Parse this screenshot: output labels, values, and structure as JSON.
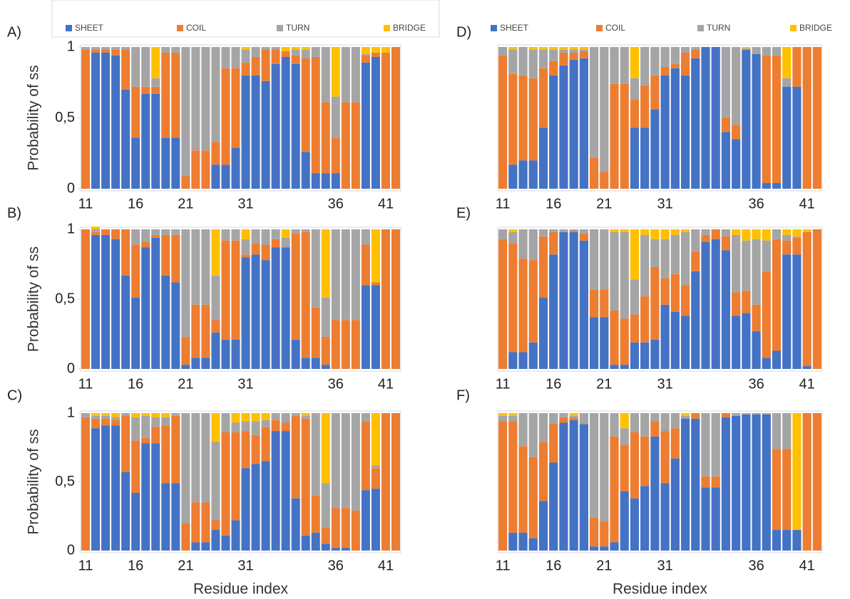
{
  "chart_data": [
    {
      "type": "bar",
      "stacked": true,
      "title": "A)",
      "ylabel": "Probability of ss",
      "categories": [
        "11",
        null,
        null,
        null,
        null,
        "16",
        null,
        null,
        null,
        null,
        "21",
        null,
        null,
        null,
        null,
        null,
        "31",
        null,
        null,
        null,
        null,
        null,
        null,
        null,
        null,
        "36",
        null,
        null,
        null,
        null,
        "41",
        null
      ],
      "ylim": [
        0,
        1
      ],
      "yticks": [
        0,
        {
          "value": 0.5,
          "label": "0,5"
        },
        1
      ],
      "series": [
        {
          "name": "SHEET",
          "color": "#4472c4",
          "values": [
            0,
            0.96,
            0.96,
            0.94,
            0.7,
            0.36,
            0.67,
            0.67,
            0.36,
            0.36,
            0,
            0,
            0,
            0.17,
            0.17,
            0.29,
            0.8,
            0.8,
            0.76,
            0.88,
            0.93,
            0.88,
            0.26,
            0.11,
            0.11,
            0.11,
            0,
            0,
            0.89,
            0.93,
            0,
            0
          ]
        },
        {
          "name": "COIL",
          "color": "#ed7d31",
          "values": [
            0.98,
            0.02,
            0.02,
            0.04,
            0.28,
            0.36,
            0.05,
            0.05,
            0.6,
            0.6,
            0.09,
            0.27,
            0.27,
            0.16,
            0.68,
            0.56,
            0.09,
            0.13,
            0.22,
            0.1,
            0.04,
            0.06,
            0.66,
            0.82,
            0.5,
            0.25,
            0.61,
            0.61,
            0.05,
            0.03,
            0.96,
            1
          ]
        },
        {
          "name": "TURN",
          "color": "#a5a5a5",
          "values": [
            0.02,
            0.02,
            0.02,
            0.02,
            0.02,
            0.28,
            0.28,
            0.06,
            0.04,
            0.04,
            0.91,
            0.73,
            0.73,
            0.67,
            0.15,
            0.15,
            0.09,
            0.07,
            0.02,
            0.02,
            0,
            0.04,
            0.06,
            0.07,
            0.39,
            0.29,
            0.39,
            0.39,
            0.01,
            0,
            0,
            0
          ]
        },
        {
          "name": "BRIDGE",
          "color": "#ffc000",
          "values": [
            0,
            0,
            0,
            0,
            0,
            0,
            0,
            0.22,
            0,
            0,
            0,
            0,
            0,
            0,
            0,
            0,
            0.02,
            0,
            0,
            0,
            0.03,
            0.02,
            0.02,
            0,
            0,
            0.35,
            0,
            0,
            0.05,
            0.04,
            0.04,
            0
          ]
        }
      ]
    },
    {
      "type": "bar",
      "stacked": true,
      "title": "B)",
      "ylabel": "Probability of ss",
      "categories": [
        "11",
        null,
        null,
        null,
        null,
        "16",
        null,
        null,
        null,
        null,
        "21",
        null,
        null,
        null,
        null,
        null,
        "31",
        null,
        null,
        null,
        null,
        null,
        null,
        null,
        null,
        "36",
        null,
        null,
        null,
        null,
        "41",
        null
      ],
      "ylim": [
        0,
        1
      ],
      "yticks": [
        0,
        {
          "value": 0.5,
          "label": "0,5"
        },
        1
      ],
      "series": [
        {
          "color": "#4472c4",
          "values": [
            0,
            0.96,
            0.96,
            0.93,
            0.67,
            0.51,
            0.87,
            0.94,
            0.67,
            0.62,
            0.03,
            0.08,
            0.08,
            0.26,
            0.21,
            0.21,
            0.8,
            0.82,
            0.78,
            0.87,
            0.87,
            0.21,
            0.08,
            0.08,
            0.03,
            0,
            0,
            0,
            0.6,
            0.6,
            0,
            0
          ]
        },
        {
          "color": "#ed7d31",
          "values": [
            1,
            0.02,
            0.04,
            0.07,
            0.33,
            0.38,
            0.04,
            0.02,
            0.29,
            0.34,
            0.2,
            0.38,
            0.38,
            0.09,
            0.71,
            0.71,
            0.02,
            0.08,
            0.11,
            0.06,
            0,
            0.76,
            0.9,
            0.36,
            0.2,
            0.35,
            0.35,
            0.35,
            0.29,
            0.02,
            1,
            1
          ]
        },
        {
          "color": "#a5a5a5",
          "values": [
            0,
            0.02,
            0,
            0,
            0,
            0.11,
            0.09,
            0.04,
            0.04,
            0.04,
            0.77,
            0.54,
            0.54,
            0.32,
            0.08,
            0.08,
            0.11,
            0.1,
            0.11,
            0.07,
            0.07,
            0.03,
            0.02,
            0.56,
            0.28,
            0.65,
            0.65,
            0.65,
            0.11,
            0,
            0,
            0
          ]
        },
        {
          "color": "#ffc000",
          "values": [
            0,
            0.02,
            0,
            0,
            0,
            0,
            0,
            0,
            0,
            0,
            0,
            0,
            0,
            0.33,
            0,
            0,
            0.07,
            0,
            0,
            0,
            0.06,
            0,
            0,
            0,
            0.49,
            0,
            0,
            0,
            0,
            0.38,
            0,
            0
          ]
        }
      ]
    },
    {
      "type": "bar",
      "stacked": true,
      "title": "C)",
      "ylabel": "Probability of ss",
      "xlabel": "Residue index",
      "categories": [
        "11",
        null,
        null,
        null,
        null,
        "16",
        null,
        null,
        null,
        null,
        "21",
        null,
        null,
        null,
        null,
        null,
        "31",
        null,
        null,
        null,
        null,
        null,
        null,
        null,
        null,
        "36",
        null,
        null,
        null,
        null,
        "41",
        null
      ],
      "ylim": [
        0,
        1
      ],
      "yticks": [
        0,
        {
          "value": 0.5,
          "label": "0,5"
        },
        1
      ],
      "series": [
        {
          "color": "#4472c4",
          "values": [
            0,
            0.89,
            0.91,
            0.91,
            0.57,
            0.42,
            0.78,
            0.78,
            0.49,
            0.49,
            0,
            0.06,
            0.06,
            0.15,
            0.11,
            0.22,
            0.6,
            0.63,
            0.65,
            0.87,
            0.87,
            0.38,
            0.11,
            0.13,
            0.05,
            0.02,
            0.02,
            0,
            0.44,
            0.45,
            0,
            0
          ]
        },
        {
          "color": "#ed7d31",
          "values": [
            0.97,
            0.07,
            0.05,
            0.04,
            0.41,
            0.38,
            0.04,
            0.12,
            0.42,
            0.49,
            0.2,
            0.29,
            0.29,
            0.07,
            0.75,
            0.64,
            0.27,
            0.21,
            0.25,
            0.08,
            0.06,
            0.6,
            0.85,
            0.27,
            0.12,
            0.29,
            0.29,
            0.29,
            0.5,
            0.15,
            1,
            1
          ]
        },
        {
          "color": "#a5a5a5",
          "values": [
            0.03,
            0.02,
            0.02,
            0.02,
            0.02,
            0.17,
            0.16,
            0.07,
            0.06,
            0.02,
            0.8,
            0.65,
            0.65,
            0.57,
            0.14,
            0.07,
            0.07,
            0.1,
            0.05,
            0.05,
            0.07,
            0.02,
            0.02,
            0.6,
            0.32,
            0.69,
            0.69,
            0.71,
            0.06,
            0.02,
            0,
            0
          ]
        },
        {
          "color": "#ffc000",
          "values": [
            0,
            0.02,
            0.02,
            0.03,
            0,
            0.03,
            0.02,
            0.03,
            0.03,
            0,
            0,
            0,
            0,
            0.21,
            0,
            0.07,
            0.06,
            0.06,
            0.05,
            0,
            0,
            0,
            0.02,
            0,
            0.51,
            0,
            0,
            0,
            0,
            0.38,
            0,
            0
          ]
        }
      ]
    },
    {
      "type": "bar",
      "stacked": true,
      "title": "D)",
      "categories": [
        "11",
        null,
        null,
        null,
        null,
        "16",
        null,
        null,
        null,
        null,
        "21",
        null,
        null,
        null,
        null,
        null,
        "31",
        null,
        null,
        null,
        null,
        null,
        null,
        null,
        null,
        "36",
        null,
        null,
        null,
        null,
        "41",
        null
      ],
      "ylim": [
        0,
        1
      ],
      "series": [
        {
          "name": "SHEET",
          "color": "#4472c4",
          "values": [
            0,
            0.17,
            0.2,
            0.2,
            0.43,
            0.8,
            0.87,
            0.91,
            0.92,
            0,
            0,
            0,
            0,
            0.43,
            0.43,
            0.56,
            0.8,
            0.85,
            0.8,
            0.92,
            1,
            1,
            0.4,
            0.35,
            0.98,
            0.95,
            0.04,
            0.04,
            0.72,
            0.72,
            0,
            0
          ]
        },
        {
          "name": "COIL",
          "color": "#ed7d31",
          "values": [
            0.94,
            0.64,
            0.6,
            0.58,
            0.42,
            0.1,
            0.09,
            0.05,
            0.05,
            0.22,
            0.12,
            0.74,
            0.74,
            0.2,
            0.3,
            0.24,
            0.06,
            0.03,
            0.16,
            0.06,
            0,
            0,
            0.1,
            0.1,
            0,
            0,
            0.9,
            0.9,
            0,
            0.28,
            1,
            1
          ]
        },
        {
          "name": "TURN",
          "color": "#a5a5a5",
          "values": [
            0.06,
            0.17,
            0.2,
            0.2,
            0.13,
            0.08,
            0.02,
            0.02,
            0.01,
            0.78,
            0.88,
            0.26,
            0.26,
            0.15,
            0.27,
            0.2,
            0.14,
            0.12,
            0.04,
            0.02,
            0,
            0,
            0.5,
            0.55,
            0.01,
            0.05,
            0.06,
            0.06,
            0.06,
            0,
            0,
            0
          ]
        },
        {
          "name": "BRIDGE",
          "color": "#ffc000",
          "values": [
            0,
            0.02,
            0,
            0.02,
            0.02,
            0.02,
            0.02,
            0.02,
            0.02,
            0,
            0,
            0,
            0,
            0.22,
            0,
            0,
            0,
            0,
            0,
            0,
            0,
            0,
            0,
            0,
            0.01,
            0,
            0,
            0,
            0.22,
            0,
            0,
            0
          ]
        }
      ]
    },
    {
      "type": "bar",
      "stacked": true,
      "title": "E)",
      "categories": [
        "11",
        null,
        null,
        null,
        null,
        "16",
        null,
        null,
        null,
        null,
        "21",
        null,
        null,
        null,
        null,
        null,
        "31",
        null,
        null,
        null,
        null,
        null,
        null,
        null,
        null,
        "36",
        null,
        null,
        null,
        null,
        "41",
        null
      ],
      "ylim": [
        0,
        1
      ],
      "series": [
        {
          "color": "#4472c4",
          "values": [
            0,
            0.12,
            0.12,
            0.19,
            0.51,
            0.82,
            0.98,
            0.98,
            0.92,
            0.37,
            0.37,
            0.03,
            0.03,
            0.19,
            0.19,
            0.21,
            0.46,
            0.41,
            0.38,
            0.7,
            0.91,
            0.93,
            0.85,
            0.38,
            0.4,
            0.27,
            0.08,
            0.13,
            0.82,
            0.82,
            0.02,
            0
          ]
        },
        {
          "color": "#ed7d31",
          "values": [
            0.93,
            0.78,
            0.67,
            0.59,
            0.44,
            0.16,
            0,
            0.01,
            0.05,
            0.2,
            0.2,
            0.39,
            0.33,
            0.2,
            0.33,
            0.52,
            0.19,
            0.27,
            0.22,
            0.14,
            0.05,
            0.07,
            0.1,
            0.17,
            0.16,
            0.19,
            0.62,
            0.8,
            0.1,
            0.12,
            0.96,
            1
          ]
        },
        {
          "color": "#a5a5a5",
          "values": [
            0.07,
            0.08,
            0.21,
            0.22,
            0.05,
            0.02,
            0.02,
            0.01,
            0.03,
            0.43,
            0.43,
            0.56,
            0.62,
            0.25,
            0.44,
            0.2,
            0.28,
            0.28,
            0.38,
            0.16,
            0.04,
            0,
            0.05,
            0.41,
            0.36,
            0.47,
            0.22,
            0.07,
            0.04,
            0.01,
            0,
            0
          ]
        },
        {
          "color": "#ffc000",
          "values": [
            0,
            0.02,
            0,
            0,
            0,
            0,
            0,
            0,
            0,
            0,
            0,
            0.02,
            0.02,
            0.36,
            0.04,
            0.07,
            0.07,
            0.04,
            0.02,
            0,
            0,
            0,
            0,
            0.04,
            0.08,
            0.07,
            0.08,
            0,
            0.04,
            0.05,
            0.02,
            0
          ]
        }
      ]
    },
    {
      "type": "bar",
      "stacked": true,
      "title": "F)",
      "xlabel": "Residue index",
      "categories": [
        "11",
        null,
        null,
        null,
        null,
        "16",
        null,
        null,
        null,
        null,
        "21",
        null,
        null,
        null,
        null,
        null,
        "31",
        null,
        null,
        null,
        null,
        null,
        null,
        null,
        null,
        "36",
        null,
        null,
        null,
        null,
        "41",
        null
      ],
      "ylim": [
        0,
        1
      ],
      "series": [
        {
          "color": "#4472c4",
          "values": [
            0,
            0.13,
            0.13,
            0.09,
            0.36,
            0.64,
            0.93,
            0.95,
            0.92,
            0.03,
            0.03,
            0.06,
            0.43,
            0.38,
            0.47,
            0.83,
            0.49,
            0.67,
            0.96,
            0.96,
            0.46,
            0.46,
            0.97,
            0.98,
            0.99,
            0.99,
            0.99,
            0.15,
            0.15,
            0.15,
            0,
            0
          ]
        },
        {
          "color": "#ed7d31",
          "values": [
            0.94,
            0.81,
            0.63,
            0.59,
            0.43,
            0.28,
            0.04,
            0.02,
            0,
            0.21,
            0.18,
            0.77,
            0.34,
            0.48,
            0.36,
            0.11,
            0.38,
            0.22,
            0,
            0.04,
            0.08,
            0.08,
            0.03,
            0,
            0,
            0,
            0,
            0.59,
            0.59,
            0,
            1,
            1
          ]
        },
        {
          "color": "#a5a5a5",
          "values": [
            0.04,
            0.04,
            0.24,
            0.32,
            0.21,
            0.08,
            0.03,
            0.01,
            0.08,
            0.76,
            0.79,
            0.17,
            0.12,
            0.14,
            0.17,
            0.06,
            0.13,
            0.11,
            0.02,
            0,
            0.46,
            0.46,
            0,
            0.02,
            0.01,
            0.01,
            0.01,
            0.26,
            0.26,
            0,
            0,
            0
          ]
        },
        {
          "color": "#ffc000",
          "values": [
            0.02,
            0.02,
            0,
            0,
            0,
            0,
            0,
            0.02,
            0,
            0,
            0,
            0,
            0.11,
            0,
            0,
            0,
            0,
            0,
            0.02,
            0,
            0,
            0,
            0,
            0,
            0,
            0,
            0,
            0,
            0,
            0.85,
            0,
            0
          ]
        }
      ]
    }
  ]
}
